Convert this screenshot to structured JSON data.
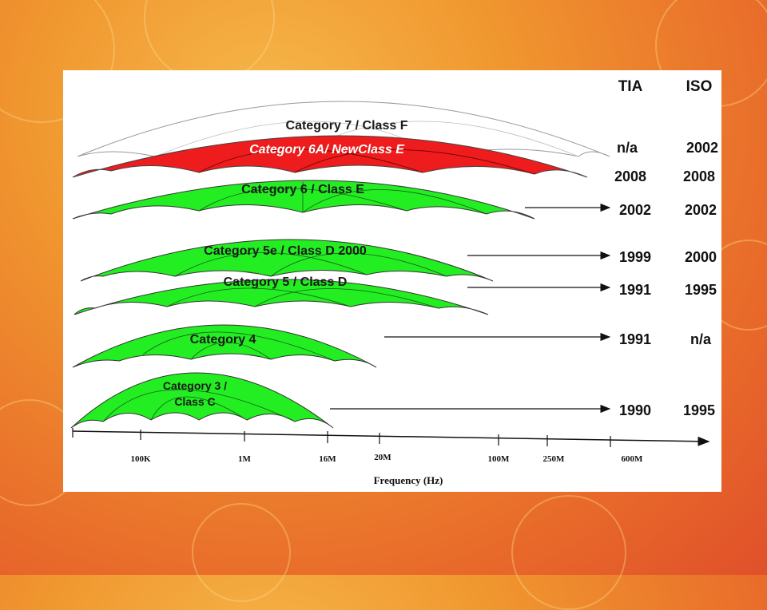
{
  "header": {
    "tia": "TIA",
    "iso": "ISO"
  },
  "categories": [
    {
      "id": "cat7",
      "label": "Category 7 / Class F",
      "tia": "n/a",
      "iso": "2002",
      "color": "#ffffff"
    },
    {
      "id": "cat6a",
      "label": "Category 6A/ NewClass E",
      "tia": "2008",
      "iso": "2008",
      "color": "#ee1c1c"
    },
    {
      "id": "cat6",
      "label": "Category 6 / Class E",
      "tia": "2002",
      "iso": "2002",
      "color": "#22ee22"
    },
    {
      "id": "cat5e",
      "label": "Category 5e / Class D 2000",
      "tia": "1999",
      "iso": "2000",
      "color": "#22ee22"
    },
    {
      "id": "cat5",
      "label": "Category 5 / Class D",
      "tia": "1991",
      "iso": "1995",
      "color": "#22ee22"
    },
    {
      "id": "cat4",
      "label": "Category 4",
      "tia": "1991",
      "iso": "n/a",
      "color": "#22ee22"
    },
    {
      "id": "cat3",
      "label_line1": "Category 3 /",
      "label_line2": "Class C",
      "tia": "1990",
      "iso": "1995",
      "color": "#22ee22"
    }
  ],
  "axis": {
    "ticks": [
      "100K",
      "1M",
      "16M",
      "20M",
      "100M",
      "250M",
      "600M"
    ],
    "label": "Frequency (Hz)"
  }
}
